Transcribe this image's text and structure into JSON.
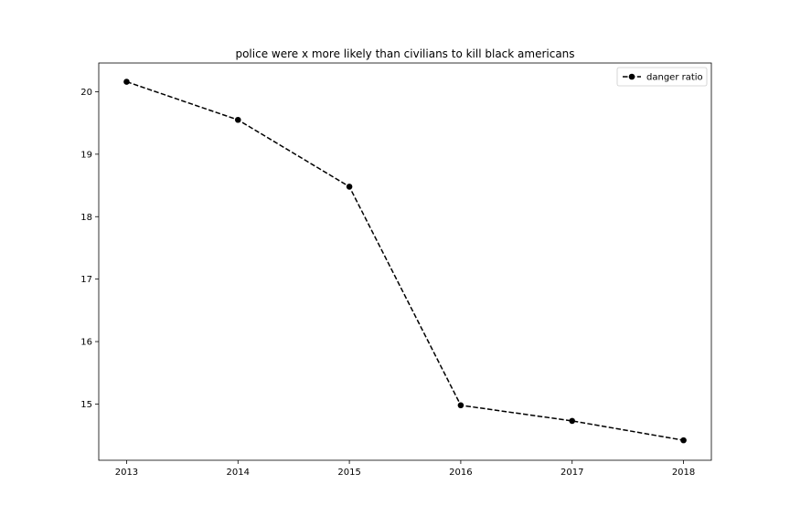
{
  "chart_data": {
    "type": "line",
    "title": "police were x more likely than civilians to kill black americans",
    "xlabel": "",
    "ylabel": "",
    "x": [
      2013,
      2014,
      2015,
      2016,
      2017,
      2018
    ],
    "x_tick_labels": [
      "2013",
      "2014",
      "2015",
      "2016",
      "2017",
      "2018"
    ],
    "y_ticks": [
      15,
      16,
      17,
      18,
      19,
      20
    ],
    "y_tick_labels": [
      "15",
      "16",
      "17",
      "18",
      "19",
      "20"
    ],
    "xlim": [
      2012.75,
      2018.25
    ],
    "ylim": [
      14.1,
      20.46
    ],
    "grid": false,
    "legend": {
      "placement": "top-right"
    },
    "series": [
      {
        "name": "danger ratio",
        "values": [
          20.16,
          19.55,
          18.48,
          14.98,
          14.73,
          14.42
        ],
        "color": "#000000",
        "line_style": "dashed",
        "marker": "circle"
      }
    ]
  }
}
